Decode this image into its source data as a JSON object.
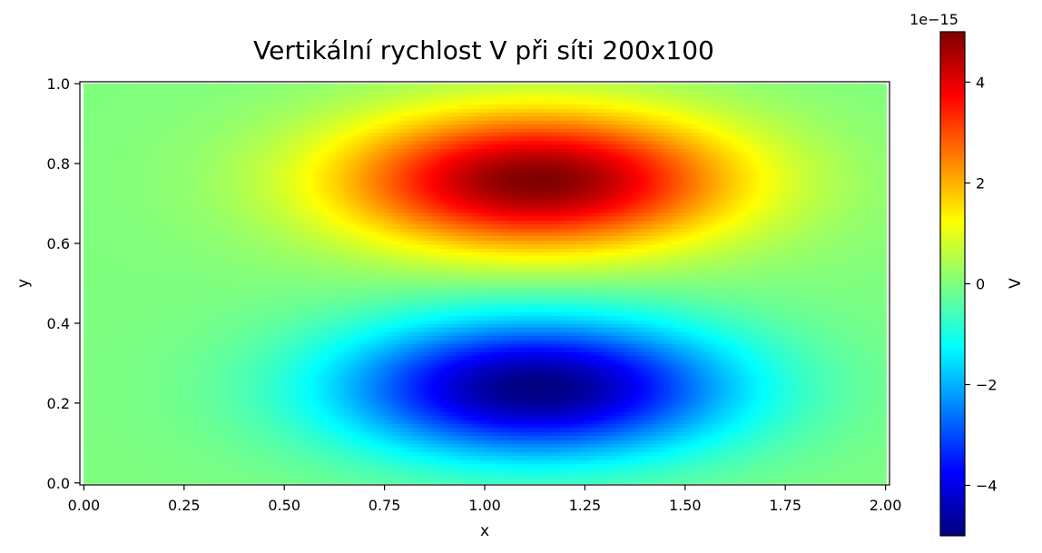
{
  "chart_data": {
    "type": "heatmap",
    "title": "Vertikální rychlost V při síti 200x100",
    "xlabel": "x",
    "ylabel": "y",
    "xlim": [
      -0.01,
      2.01
    ],
    "ylim": [
      -0.005,
      1.005
    ],
    "grid": false,
    "x_ticks": [
      {
        "value": 0.0,
        "label": "0.00"
      },
      {
        "value": 0.25,
        "label": "0.25"
      },
      {
        "value": 0.5,
        "label": "0.50"
      },
      {
        "value": 0.75,
        "label": "0.75"
      },
      {
        "value": 1.0,
        "label": "1.00"
      },
      {
        "value": 1.25,
        "label": "1.25"
      },
      {
        "value": 1.5,
        "label": "1.50"
      },
      {
        "value": 1.75,
        "label": "1.75"
      },
      {
        "value": 2.0,
        "label": "2.00"
      }
    ],
    "y_ticks": [
      {
        "value": 0.0,
        "label": "0.0"
      },
      {
        "value": 0.2,
        "label": "0.2"
      },
      {
        "value": 0.4,
        "label": "0.4"
      },
      {
        "value": 0.6,
        "label": "0.6"
      },
      {
        "value": 0.8,
        "label": "0.8"
      },
      {
        "value": 1.0,
        "label": "1.0"
      }
    ],
    "grid_size": {
      "nx": 200,
      "ny": 100
    },
    "colormap": "jet",
    "colorbar": {
      "label": "V",
      "offset_text": "1e−15",
      "range": [
        -5e-15,
        5e-15
      ],
      "ticks": [
        {
          "value": -4e-15,
          "label": "−4"
        },
        {
          "value": -2e-15,
          "label": "−2"
        },
        {
          "value": 0,
          "label": "0"
        },
        {
          "value": 2e-15,
          "label": "2"
        },
        {
          "value": 4e-15,
          "label": "4"
        }
      ]
    },
    "features": [
      {
        "name": "positive-lobe",
        "x": 1.13,
        "y": 0.76,
        "value": 5e-15,
        "sigma_x": 0.34,
        "sigma_y": 0.12
      },
      {
        "name": "negative-lobe",
        "x": 1.13,
        "y": 0.24,
        "value": -5e-15,
        "sigma_x": 0.34,
        "sigma_y": 0.12
      }
    ],
    "background_value": 0.0
  }
}
